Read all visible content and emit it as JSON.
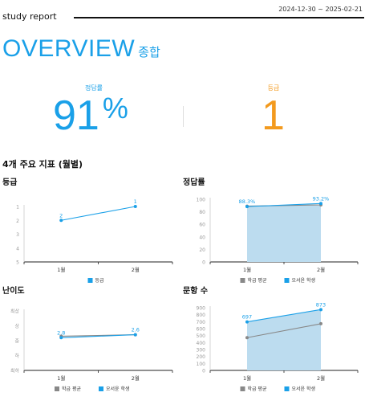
{
  "header": {
    "brand": "study report",
    "period": "2024-12-30 ~ 2025-02-21"
  },
  "overview": {
    "title_en": "OVERVIEW",
    "title_ko": "종합"
  },
  "stats": {
    "rate_label": "정답률",
    "rate_value": "91",
    "rate_unit": "%",
    "grade_label": "등급",
    "grade_value": "1"
  },
  "section_title": "4개 주요 지표 (월별)",
  "colors": {
    "accent": "#1aa0e8",
    "orange": "#f39a1e",
    "bar": "#bcdcef",
    "avg": "#888888"
  },
  "chart_data": [
    {
      "id": "grade",
      "title": "등급",
      "type": "line",
      "categories": [
        "1월",
        "2월"
      ],
      "yticks": [
        1,
        2,
        3,
        4,
        5
      ],
      "ylim": [
        1,
        5
      ],
      "reversed": true,
      "series": [
        {
          "name": "등급",
          "values": [
            2,
            1
          ],
          "labels": [
            "2",
            "1"
          ]
        }
      ],
      "legend": [
        "등급"
      ]
    },
    {
      "id": "rate",
      "title": "정답률",
      "type": "bar+line",
      "categories": [
        "1월",
        "2월"
      ],
      "yticks": [
        0,
        20,
        40,
        60,
        80,
        100
      ],
      "ylim": [
        0,
        100
      ],
      "bars": [
        90,
        90
      ],
      "series": [
        {
          "name": "학급 평균",
          "values": [
            89,
            91
          ]
        },
        {
          "name": "오서윤 학생",
          "values": [
            88.3,
            93.2
          ],
          "labels": [
            "88.3%",
            "93.2%"
          ]
        }
      ],
      "legend": [
        "학급 평균",
        "오서윤 학생"
      ]
    },
    {
      "id": "difficulty",
      "title": "난이도",
      "type": "line",
      "categories": [
        "1월",
        "2월"
      ],
      "yticks": [
        "최상",
        "상",
        "중",
        "하",
        "최하"
      ],
      "ylim": [
        1,
        5
      ],
      "reversed": true,
      "series": [
        {
          "name": "학급 평균",
          "values": [
            2.7,
            2.6
          ]
        },
        {
          "name": "오서윤 학생",
          "values": [
            2.8,
            2.6
          ],
          "labels": [
            "2.8",
            "2.6"
          ]
        }
      ],
      "legend": [
        "학급 평균",
        "오서윤 학생"
      ]
    },
    {
      "id": "count",
      "title": "문항 수",
      "type": "bar+line",
      "categories": [
        "1월",
        "2월"
      ],
      "yticks": [
        0,
        100,
        200,
        300,
        400,
        500,
        600,
        700,
        800,
        900
      ],
      "ylim": [
        0,
        900
      ],
      "bars": [
        697,
        873
      ],
      "series": [
        {
          "name": "학급 평균",
          "values": [
            470,
            670
          ]
        },
        {
          "name": "오서윤 학생",
          "values": [
            697,
            873
          ],
          "labels": [
            "697",
            "873"
          ]
        }
      ],
      "legend": [
        "학급 평균",
        "오서윤 학생"
      ]
    }
  ]
}
